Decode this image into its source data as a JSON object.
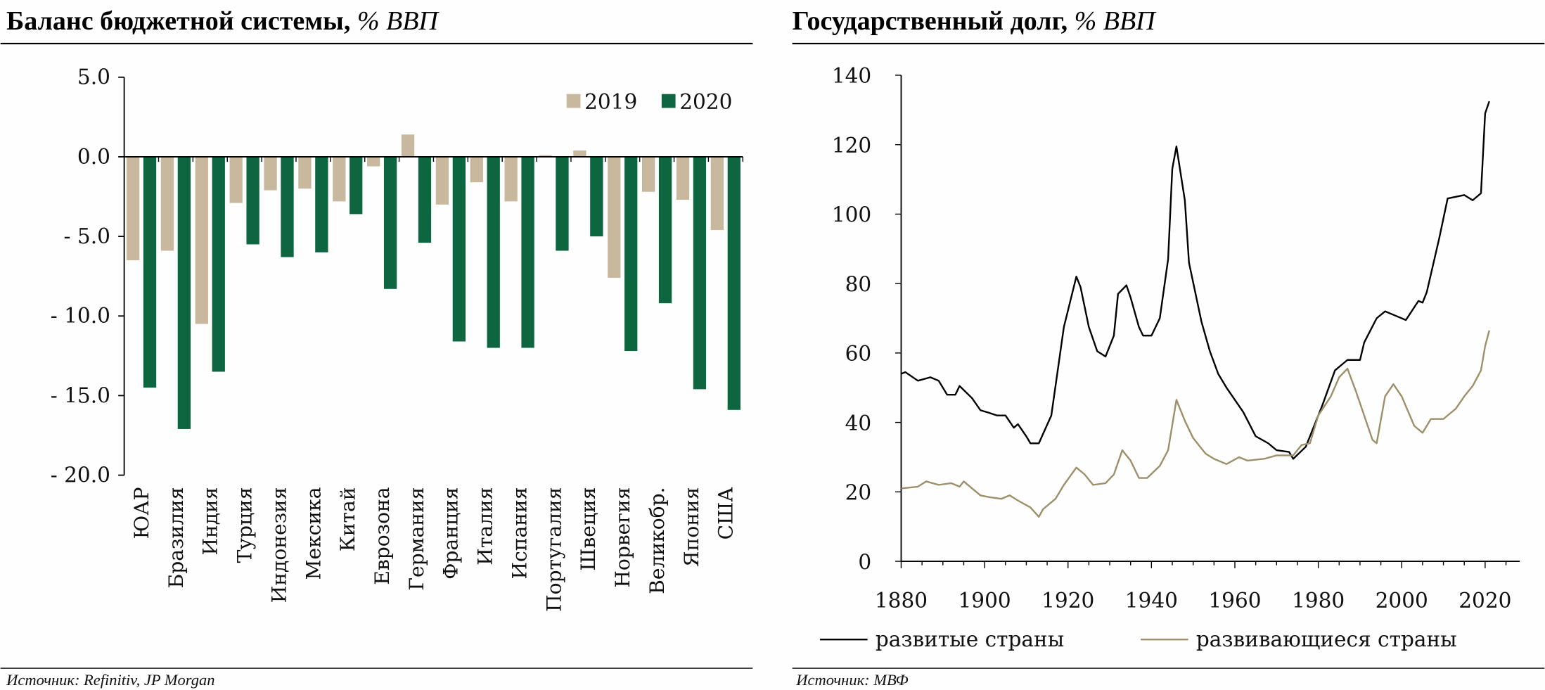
{
  "colors": {
    "y2019": "#c8b89e",
    "y2020": "#0d6640",
    "developed": "#000000",
    "developing": "#9c8f6a"
  },
  "chart_data": [
    {
      "type": "bar",
      "title": "Баланс бюджетной системы,",
      "title_unit": "% ВВП",
      "source": "Источник: Refinitiv, JP Morgan",
      "ylim": [
        -20,
        5
      ],
      "yticks": [
        "5.0",
        "0.0",
        "- 5.0",
        "- 10.0",
        "- 15.0",
        "- 20.0"
      ],
      "ytick_values": [
        5,
        0,
        -5,
        -10,
        -15,
        -20
      ],
      "legend_position": "top-right",
      "categories": [
        "ЮАР",
        "Бразилия",
        "Индия",
        "Турция",
        "Индонезия",
        "Мексика",
        "Китай",
        "Еврозона",
        "Германия",
        "Франция",
        "Италия",
        "Испания",
        "Португалия",
        "Швеция",
        "Норвегия",
        "Великобр.",
        "Япония",
        "США"
      ],
      "series": [
        {
          "name": "2019",
          "values": [
            -6.5,
            -5.9,
            -10.5,
            -2.9,
            -2.1,
            -2.0,
            -2.8,
            -0.6,
            1.4,
            -3.0,
            -1.6,
            -2.8,
            0.1,
            0.4,
            -7.6,
            -2.2,
            -2.7,
            -4.6
          ]
        },
        {
          "name": "2020",
          "values": [
            -14.5,
            -17.1,
            -13.5,
            -5.5,
            -6.3,
            -6.0,
            -3.6,
            -8.3,
            -5.4,
            -11.6,
            -12.0,
            -12.0,
            -5.9,
            -5.0,
            -12.2,
            -9.2,
            -14.6,
            -15.9
          ]
        }
      ]
    },
    {
      "type": "line",
      "title": "Государственный долг,",
      "title_unit": "% ВВП",
      "source": "Источник: МВФ",
      "xlim": [
        1880,
        2025
      ],
      "ylim": [
        0,
        140
      ],
      "xticks": [
        "1880",
        "1900",
        "1920",
        "1940",
        "1960",
        "1980",
        "2000",
        "2020"
      ],
      "yticks": [
        "0",
        "20",
        "40",
        "60",
        "80",
        "100",
        "120",
        "140"
      ],
      "legend_position": "bottom",
      "series": [
        {
          "name": "развитые страны",
          "points": [
            [
              1880,
              54
            ],
            [
              1881,
              54.5
            ],
            [
              1884,
              52
            ],
            [
              1887,
              53
            ],
            [
              1889,
              52
            ],
            [
              1891,
              48
            ],
            [
              1893,
              48
            ],
            [
              1894,
              50.5
            ],
            [
              1897,
              47
            ],
            [
              1899,
              43.5
            ],
            [
              1901,
              42.8
            ],
            [
              1903,
              42
            ],
            [
              1905,
              42
            ],
            [
              1907,
              38.5
            ],
            [
              1908,
              39.5
            ],
            [
              1910,
              36
            ],
            [
              1911,
              34
            ],
            [
              1913,
              34
            ],
            [
              1916,
              42
            ],
            [
              1919,
              67.5
            ],
            [
              1922,
              82
            ],
            [
              1923,
              79
            ],
            [
              1925,
              67.5
            ],
            [
              1927,
              60.5
            ],
            [
              1929,
              59
            ],
            [
              1931,
              65
            ],
            [
              1932,
              77
            ],
            [
              1934,
              79.5
            ],
            [
              1935,
              76
            ],
            [
              1937,
              67.5
            ],
            [
              1938,
              65
            ],
            [
              1940,
              65
            ],
            [
              1942,
              70
            ],
            [
              1944,
              87
            ],
            [
              1945,
              113
            ],
            [
              1946,
              119.5
            ],
            [
              1948,
              104
            ],
            [
              1949,
              86
            ],
            [
              1952,
              69
            ],
            [
              1954,
              60.5
            ],
            [
              1956,
              54
            ],
            [
              1958,
              50
            ],
            [
              1962,
              43
            ],
            [
              1965,
              36
            ],
            [
              1968,
              34
            ],
            [
              1970,
              32
            ],
            [
              1973,
              31.5
            ],
            [
              1974,
              29.5
            ],
            [
              1977,
              33
            ],
            [
              1981,
              45
            ],
            [
              1984,
              55
            ],
            [
              1987,
              58
            ],
            [
              1990,
              58
            ],
            [
              1991,
              63
            ],
            [
              1994,
              70
            ],
            [
              1996,
              72
            ],
            [
              1998,
              71
            ],
            [
              2001,
              69.5
            ],
            [
              2004,
              75
            ],
            [
              2005,
              74.5
            ],
            [
              2006,
              77.5
            ],
            [
              2009,
              93
            ],
            [
              2011,
              104.5
            ],
            [
              2015,
              105.5
            ],
            [
              2017,
              104
            ],
            [
              2019,
              106
            ],
            [
              2020,
              129
            ],
            [
              2021,
              132.5
            ]
          ]
        },
        {
          "name": "развивающиеся страны",
          "points": [
            [
              1880,
              21
            ],
            [
              1884,
              21.5
            ],
            [
              1886,
              23
            ],
            [
              1889,
              22
            ],
            [
              1892,
              22.5
            ],
            [
              1894,
              21.5
            ],
            [
              1895,
              23
            ],
            [
              1899,
              19
            ],
            [
              1901,
              18.5
            ],
            [
              1904,
              18
            ],
            [
              1906,
              19
            ],
            [
              1908,
              17.5
            ],
            [
              1911,
              15.5
            ],
            [
              1913,
              12.8
            ],
            [
              1914,
              15
            ],
            [
              1917,
              18
            ],
            [
              1919,
              22
            ],
            [
              1922,
              27
            ],
            [
              1924,
              25
            ],
            [
              1926,
              22
            ],
            [
              1929,
              22.5
            ],
            [
              1931,
              25
            ],
            [
              1933,
              32
            ],
            [
              1935,
              29
            ],
            [
              1937,
              24
            ],
            [
              1939,
              24
            ],
            [
              1942,
              27.5
            ],
            [
              1944,
              32
            ],
            [
              1946,
              46.5
            ],
            [
              1948,
              40.5
            ],
            [
              1950,
              35.5
            ],
            [
              1953,
              31
            ],
            [
              1955,
              29.5
            ],
            [
              1958,
              28
            ],
            [
              1961,
              30
            ],
            [
              1963,
              29
            ],
            [
              1967,
              29.5
            ],
            [
              1970,
              30.5
            ],
            [
              1974,
              30.5
            ],
            [
              1976,
              33.5
            ],
            [
              1978,
              34
            ],
            [
              1980,
              42
            ],
            [
              1983,
              47.5
            ],
            [
              1985,
              53
            ],
            [
              1987,
              55.5
            ],
            [
              1989,
              49
            ],
            [
              1991,
              42
            ],
            [
              1993,
              35
            ],
            [
              1994,
              34
            ],
            [
              1996,
              47.5
            ],
            [
              1998,
              51
            ],
            [
              2000,
              47.5
            ],
            [
              2003,
              39
            ],
            [
              2005,
              37
            ],
            [
              2007,
              41
            ],
            [
              2010,
              41
            ],
            [
              2013,
              44
            ],
            [
              2015,
              47.5
            ],
            [
              2017,
              50.5
            ],
            [
              2019,
              55
            ],
            [
              2020,
              62
            ],
            [
              2021,
              66.5
            ]
          ]
        }
      ]
    }
  ]
}
